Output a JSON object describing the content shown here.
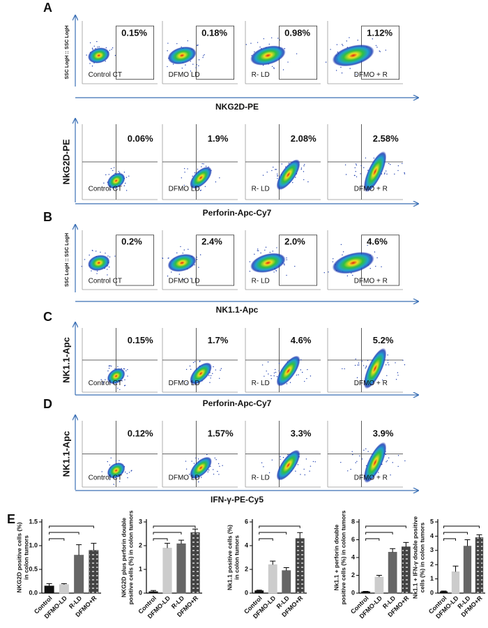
{
  "flow_rows": [
    {
      "letter": "A",
      "ylabel": "SSC LogH :: SSC LogH",
      "xlabel": "NKG2D-PE",
      "percents": [
        "0.15%",
        "0.18%",
        "0.98%",
        "1.12%"
      ],
      "samples": [
        "Control CT",
        "DFMO LD",
        "R- LD",
        "DFMO + R"
      ]
    },
    {
      "ylabel": "NkG2D-PE",
      "xlabel": "Perforin-Apc-Cy7",
      "percents": [
        "0.06%",
        "1.9%",
        "2.08%",
        "2.58%"
      ],
      "samples": [
        "Control CT",
        "DFMO LD",
        "R- LD",
        "DFMO + R"
      ]
    },
    {
      "letter": "B",
      "ylabel": "SSC LogH :: SSC LogH",
      "xlabel": "NK1.1-Apc",
      "percents": [
        "0.2%",
        "2.4%",
        "2.0%",
        "4.6%"
      ],
      "samples": [
        "Control CT",
        "DFMO LD",
        "R- LD",
        "DFMO + R"
      ]
    },
    {
      "letter": "C",
      "ylabel": "NK1.1-Apc",
      "xlabel": "Perforin-Apc-Cy7",
      "percents": [
        "0.15%",
        "1.7%",
        "4.6%",
        "5.2%"
      ],
      "samples": [
        "Control CT",
        "DFMO LD",
        "R- LD",
        "DFMO + R"
      ]
    },
    {
      "letter": "D",
      "ylabel": "NK1.1-Apc",
      "xlabel": "IFN-γ-PE-Cy5",
      "percents": [
        "0.12%",
        "1.57%",
        "3.3%",
        "3.9%"
      ],
      "samples": [
        "Control CT",
        "DFMO LD",
        "R- LD",
        "DFMO + R"
      ]
    }
  ],
  "panel_e_letter": "E",
  "chart_data": [
    {
      "type": "bar",
      "ylabel": [
        "NKG2D positive cells (%)",
        "in colon tumors"
      ],
      "categories": [
        "Control",
        "DFMO-LD",
        "R-LD",
        "DFMO+R"
      ],
      "values": [
        0.15,
        0.18,
        0.8,
        0.9
      ],
      "errors": [
        0.05,
        0.02,
        0.22,
        0.15
      ],
      "colors": [
        "#111111",
        "#cccccc",
        "#666666",
        "#444444"
      ],
      "ylim": [
        0,
        1.5
      ],
      "yticks": [
        {
          "value": 0,
          "label": "0.0"
        },
        0.5,
        {
          "value": 1,
          "label": "1.0"
        },
        1.5
      ]
    },
    {
      "type": "bar",
      "ylabel": [
        "NKG2D plus perforin double",
        "positive cells (%) in colon tumors"
      ],
      "categories": [
        "Control",
        "DFMO-LD",
        "R-LD",
        "DFMO+R"
      ],
      "values": [
        0.06,
        1.9,
        2.08,
        2.55
      ],
      "errors": [
        0.05,
        0.2,
        0.15,
        0.15
      ],
      "colors": [
        "#111111",
        "#cccccc",
        "#666666",
        "#444444"
      ],
      "ylim": [
        0,
        3
      ],
      "yticks": [
        0,
        1,
        2,
        3
      ]
    },
    {
      "type": "bar",
      "ylabel": [
        "Nk1.1 positive cells (%)",
        "in colon tumors"
      ],
      "categories": [
        "Control",
        "DFMO-LD",
        "R-LD",
        "DFMO+R"
      ],
      "values": [
        0.2,
        2.4,
        1.9,
        4.6
      ],
      "errors": [
        0.05,
        0.3,
        0.25,
        0.5
      ],
      "colors": [
        "#111111",
        "#cccccc",
        "#666666",
        "#444444"
      ],
      "ylim": [
        0,
        6
      ],
      "yticks": [
        0,
        2,
        4,
        6
      ]
    },
    {
      "type": "bar",
      "ylabel": [
        "Nk1.1 + perforin double",
        "positive cells (%) in colon tumors"
      ],
      "categories": [
        "Control",
        "DFMO-LD",
        "R-LD",
        "DFMO+R"
      ],
      "values": [
        0.15,
        1.8,
        4.6,
        5.2
      ],
      "errors": [
        0.05,
        0.2,
        0.4,
        0.5
      ],
      "colors": [
        "#111111",
        "#cccccc",
        "#666666",
        "#444444"
      ],
      "ylim": [
        0,
        8
      ],
      "yticks": [
        0,
        2,
        4,
        6,
        8
      ]
    },
    {
      "type": "bar",
      "ylabel": [
        "Nk1.1 + IFN-γ double positive",
        "cells (%) in colon tumors"
      ],
      "categories": [
        "Control",
        "DFMO-LD",
        "R-LD",
        "DFMO+R"
      ],
      "values": [
        0.1,
        1.5,
        3.3,
        3.9
      ],
      "errors": [
        0.05,
        0.4,
        0.45,
        0.2
      ],
      "colors": [
        "#111111",
        "#cccccc",
        "#666666",
        "#444444"
      ],
      "ylim": [
        0,
        5
      ],
      "yticks": [
        0,
        1,
        2,
        3,
        4,
        5
      ]
    }
  ]
}
